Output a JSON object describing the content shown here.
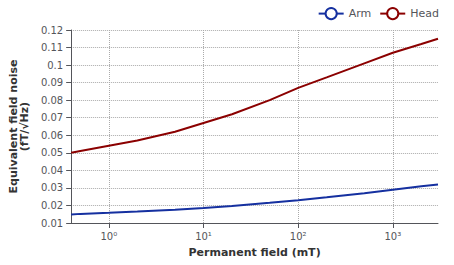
{
  "chart_data": {
    "type": "line",
    "xlabel": "Permanent field (mT)",
    "ylabel": "Equivalent field noise\n(fT/√Hz)",
    "log": "x",
    "xlim": [
      0.4,
      3000
    ],
    "xticks": [
      {
        "value": 1,
        "label": "10⁰"
      },
      {
        "value": 10,
        "label": "10¹"
      },
      {
        "value": 100,
        "label": "10²"
      },
      {
        "value": 1000,
        "label": "10³"
      }
    ],
    "ylim": [
      0.01,
      0.12
    ],
    "yticks": [
      0.01,
      0.02,
      0.03,
      0.04,
      0.05,
      0.06,
      0.07,
      0.08,
      0.09,
      0.1,
      0.11,
      0.12
    ],
    "grid": true,
    "legend": "upper right",
    "series": [
      {
        "name": "Arm",
        "color": "#1530a0",
        "x": [
          0.4,
          0.5,
          1,
          2,
          5,
          10,
          20,
          50,
          100,
          200,
          500,
          1000,
          2000,
          3000
        ],
        "values": [
          0.0148,
          0.0152,
          0.0158,
          0.0165,
          0.0175,
          0.0185,
          0.0197,
          0.0215,
          0.023,
          0.0247,
          0.027,
          0.029,
          0.031,
          0.032
        ]
      },
      {
        "name": "Head",
        "color": "#8b0000",
        "x": [
          0.4,
          0.5,
          1,
          2,
          5,
          10,
          20,
          50,
          100,
          200,
          500,
          1000,
          2000,
          3000
        ],
        "values": [
          0.05,
          0.051,
          0.054,
          0.057,
          0.062,
          0.067,
          0.072,
          0.08,
          0.087,
          0.093,
          0.101,
          0.107,
          0.112,
          0.115
        ]
      }
    ]
  }
}
